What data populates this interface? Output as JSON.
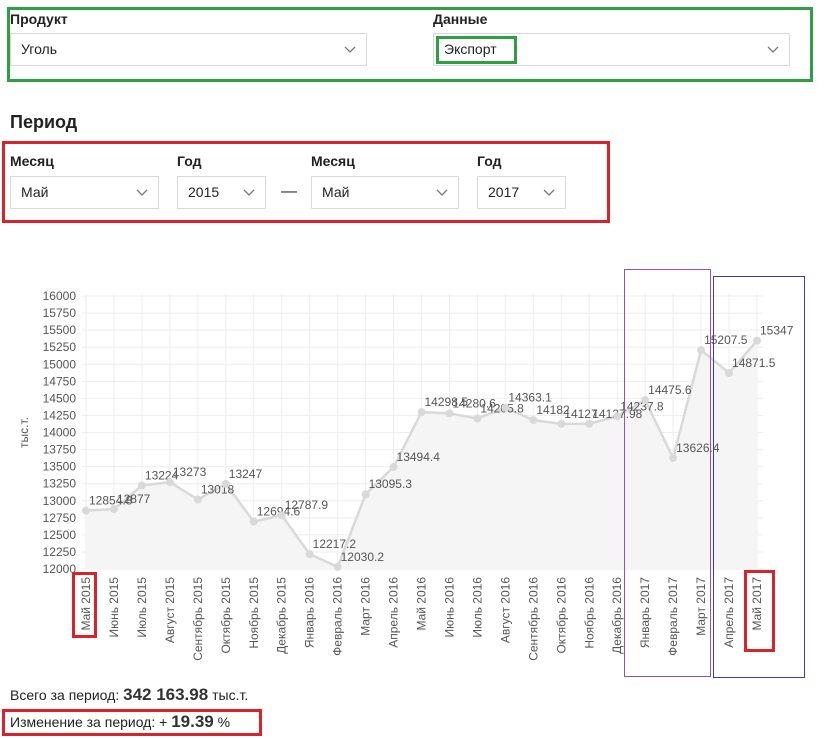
{
  "filters": {
    "product": {
      "label": "Продукт",
      "value": "Уголь"
    },
    "data": {
      "label": "Данные",
      "value": "Экспорт"
    }
  },
  "period": {
    "title": "Период",
    "start": {
      "month_label": "Месяц",
      "month": "Май",
      "year_label": "Год",
      "year": "2015"
    },
    "separator": "—",
    "end": {
      "month_label": "Месяц",
      "month": "Май",
      "year_label": "Год",
      "year": "2017"
    }
  },
  "summary": {
    "total_label": "Всего за период:",
    "total_value": "342 163.98",
    "total_unit": "тыс.т.",
    "change_label": "Изменение за период:",
    "change_sign": "+",
    "change_value": "19.39",
    "change_unit": "%"
  },
  "colors": {
    "highlight_red": "#d8232a",
    "highlight_green": "#2ea043",
    "highlight_purple": "#9b4fb0",
    "highlight_blue": "#3b3bb3",
    "series": "#d9d9d9"
  },
  "chart_data": {
    "type": "line",
    "ylabel": "тыс.т.",
    "xlabel": "",
    "ylim": [
      12000,
      16000
    ],
    "yticks": [
      12000,
      12250,
      12500,
      12750,
      13000,
      13250,
      13500,
      13750,
      14000,
      14250,
      14500,
      14750,
      15000,
      15250,
      15500,
      15750,
      16000
    ],
    "grid": true,
    "categories": [
      "Май 2015",
      "Июнь 2015",
      "Июль 2015",
      "Август 2015",
      "Сентябрь 2015",
      "Октябрь 2015",
      "Ноябрь 2015",
      "Декабрь 2015",
      "Январь 2016",
      "Февраль 2016",
      "Март 2016",
      "Апрель 2016",
      "Май 2016",
      "Июнь 2016",
      "Июль 2016",
      "Август 2016",
      "Сентябрь 2016",
      "Октябрь 2016",
      "Ноябрь 2016",
      "Декабрь 2016",
      "Январь 2017",
      "Февраль 2017",
      "Март 2017",
      "Апрель 2017",
      "Май 2017"
    ],
    "values": [
      12854.8,
      12877,
      13224,
      13273,
      13018,
      13247,
      12694.6,
      12787.9,
      12217.2,
      12030.2,
      13095.3,
      13494.4,
      14298.5,
      14280.6,
      14205.8,
      14363.1,
      14182,
      14127,
      14127.98,
      14237.8,
      14475.6,
      13626.4,
      15207.5,
      14871.5,
      15347
    ],
    "labels": [
      "12854.8",
      "12877",
      "13224",
      "13273",
      "13018",
      "13247",
      "12694.6",
      "12787.9",
      "12217.2",
      "12030.2",
      "13095.3",
      "13494.4",
      "14298.5",
      "14280.6",
      "14205.8",
      "14363.1",
      "14182",
      "14127",
      "14127.98",
      "14237.8",
      "14475.6",
      "13626.4",
      "15207.5",
      "14871.5",
      "15347"
    ]
  }
}
